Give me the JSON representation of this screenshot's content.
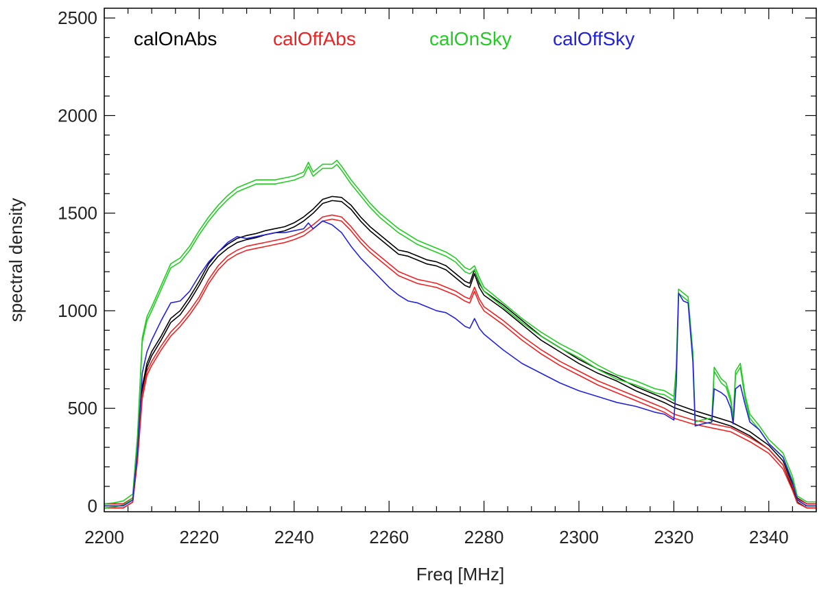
{
  "chart_data": {
    "type": "line",
    "xlabel": "Freq [MHz]",
    "ylabel": "spectral density",
    "xlim": [
      2200,
      2350
    ],
    "ylim": [
      -30,
      2550
    ],
    "x_ticks": [
      2200,
      2220,
      2240,
      2260,
      2280,
      2300,
      2320,
      2340
    ],
    "y_ticks": [
      0,
      500,
      1000,
      1500,
      2000,
      2500
    ],
    "x_minor_step": 5,
    "y_minor_step": 100,
    "grid": false,
    "legend_position": "top-left, horizontal",
    "series": [
      {
        "name": "calOnAbs",
        "color": "#000000",
        "line_style": "double-trace",
        "points": [
          [
            2200,
            0
          ],
          [
            2204,
            0
          ],
          [
            2206,
            30
          ],
          [
            2207,
            250
          ],
          [
            2208,
            600
          ],
          [
            2209,
            720
          ],
          [
            2210,
            780
          ],
          [
            2212,
            860
          ],
          [
            2214,
            950
          ],
          [
            2216,
            990
          ],
          [
            2218,
            1060
          ],
          [
            2220,
            1140
          ],
          [
            2222,
            1230
          ],
          [
            2224,
            1290
          ],
          [
            2226,
            1330
          ],
          [
            2228,
            1360
          ],
          [
            2230,
            1375
          ],
          [
            2232,
            1385
          ],
          [
            2234,
            1400
          ],
          [
            2236,
            1410
          ],
          [
            2238,
            1420
          ],
          [
            2240,
            1440
          ],
          [
            2242,
            1470
          ],
          [
            2244,
            1510
          ],
          [
            2246,
            1560
          ],
          [
            2248,
            1575
          ],
          [
            2250,
            1570
          ],
          [
            2252,
            1530
          ],
          [
            2254,
            1470
          ],
          [
            2256,
            1420
          ],
          [
            2258,
            1380
          ],
          [
            2260,
            1340
          ],
          [
            2262,
            1300
          ],
          [
            2264,
            1290
          ],
          [
            2266,
            1270
          ],
          [
            2268,
            1250
          ],
          [
            2270,
            1240
          ],
          [
            2272,
            1220
          ],
          [
            2274,
            1180
          ],
          [
            2276,
            1140
          ],
          [
            2277,
            1130
          ],
          [
            2278,
            1200
          ],
          [
            2279,
            1130
          ],
          [
            2280,
            1090
          ],
          [
            2284,
            1020
          ],
          [
            2288,
            940
          ],
          [
            2292,
            860
          ],
          [
            2296,
            800
          ],
          [
            2300,
            740
          ],
          [
            2304,
            690
          ],
          [
            2308,
            650
          ],
          [
            2312,
            600
          ],
          [
            2316,
            560
          ],
          [
            2318,
            540
          ],
          [
            2320,
            515
          ],
          [
            2324,
            480
          ],
          [
            2328,
            450
          ],
          [
            2332,
            420
          ],
          [
            2336,
            370
          ],
          [
            2340,
            300
          ],
          [
            2343,
            220
          ],
          [
            2345,
            100
          ],
          [
            2346,
            30
          ],
          [
            2348,
            0
          ],
          [
            2350,
            0
          ]
        ]
      },
      {
        "name": "calOffAbs",
        "color": "#ee2222",
        "line_style": "double-trace",
        "points": [
          [
            2200,
            0
          ],
          [
            2204,
            0
          ],
          [
            2206,
            30
          ],
          [
            2207,
            240
          ],
          [
            2208,
            560
          ],
          [
            2209,
            680
          ],
          [
            2210,
            730
          ],
          [
            2212,
            810
          ],
          [
            2214,
            880
          ],
          [
            2216,
            930
          ],
          [
            2218,
            990
          ],
          [
            2220,
            1060
          ],
          [
            2222,
            1150
          ],
          [
            2224,
            1220
          ],
          [
            2226,
            1270
          ],
          [
            2228,
            1300
          ],
          [
            2230,
            1320
          ],
          [
            2232,
            1330
          ],
          [
            2234,
            1340
          ],
          [
            2236,
            1350
          ],
          [
            2238,
            1360
          ],
          [
            2240,
            1375
          ],
          [
            2242,
            1395
          ],
          [
            2244,
            1430
          ],
          [
            2246,
            1470
          ],
          [
            2248,
            1480
          ],
          [
            2250,
            1470
          ],
          [
            2252,
            1420
          ],
          [
            2254,
            1360
          ],
          [
            2256,
            1310
          ],
          [
            2258,
            1270
          ],
          [
            2260,
            1230
          ],
          [
            2262,
            1190
          ],
          [
            2264,
            1170
          ],
          [
            2266,
            1150
          ],
          [
            2268,
            1140
          ],
          [
            2270,
            1130
          ],
          [
            2272,
            1110
          ],
          [
            2274,
            1090
          ],
          [
            2276,
            1060
          ],
          [
            2277,
            1050
          ],
          [
            2278,
            1110
          ],
          [
            2279,
            1050
          ],
          [
            2280,
            1010
          ],
          [
            2284,
            940
          ],
          [
            2288,
            860
          ],
          [
            2292,
            790
          ],
          [
            2296,
            730
          ],
          [
            2300,
            680
          ],
          [
            2304,
            630
          ],
          [
            2308,
            590
          ],
          [
            2312,
            550
          ],
          [
            2316,
            510
          ],
          [
            2318,
            490
          ],
          [
            2320,
            460
          ],
          [
            2324,
            430
          ],
          [
            2328,
            410
          ],
          [
            2332,
            390
          ],
          [
            2336,
            340
          ],
          [
            2340,
            280
          ],
          [
            2343,
            200
          ],
          [
            2345,
            90
          ],
          [
            2346,
            25
          ],
          [
            2348,
            0
          ],
          [
            2350,
            0
          ]
        ]
      },
      {
        "name": "calOnSky",
        "color": "#22cc22",
        "line_style": "double-trace",
        "points": [
          [
            2200,
            0
          ],
          [
            2202,
            5
          ],
          [
            2204,
            15
          ],
          [
            2206,
            50
          ],
          [
            2207,
            350
          ],
          [
            2208,
            850
          ],
          [
            2209,
            960
          ],
          [
            2210,
            1010
          ],
          [
            2212,
            1120
          ],
          [
            2214,
            1230
          ],
          [
            2216,
            1260
          ],
          [
            2218,
            1320
          ],
          [
            2220,
            1400
          ],
          [
            2222,
            1470
          ],
          [
            2224,
            1530
          ],
          [
            2226,
            1580
          ],
          [
            2228,
            1620
          ],
          [
            2230,
            1640
          ],
          [
            2232,
            1660
          ],
          [
            2234,
            1660
          ],
          [
            2236,
            1660
          ],
          [
            2238,
            1670
          ],
          [
            2240,
            1680
          ],
          [
            2242,
            1700
          ],
          [
            2243,
            1750
          ],
          [
            2244,
            1700
          ],
          [
            2246,
            1740
          ],
          [
            2248,
            1740
          ],
          [
            2249,
            1760
          ],
          [
            2250,
            1730
          ],
          [
            2252,
            1660
          ],
          [
            2254,
            1600
          ],
          [
            2256,
            1540
          ],
          [
            2258,
            1490
          ],
          [
            2260,
            1450
          ],
          [
            2262,
            1410
          ],
          [
            2264,
            1380
          ],
          [
            2266,
            1350
          ],
          [
            2268,
            1330
          ],
          [
            2270,
            1310
          ],
          [
            2272,
            1290
          ],
          [
            2274,
            1260
          ],
          [
            2276,
            1210
          ],
          [
            2277,
            1200
          ],
          [
            2278,
            1220
          ],
          [
            2279,
            1160
          ],
          [
            2280,
            1110
          ],
          [
            2284,
            1030
          ],
          [
            2288,
            950
          ],
          [
            2292,
            880
          ],
          [
            2296,
            820
          ],
          [
            2300,
            770
          ],
          [
            2304,
            710
          ],
          [
            2308,
            660
          ],
          [
            2312,
            630
          ],
          [
            2316,
            590
          ],
          [
            2318,
            580
          ],
          [
            2320,
            550
          ],
          [
            2320.5,
            700
          ],
          [
            2321,
            1100
          ],
          [
            2322,
            1080
          ],
          [
            2323,
            1060
          ],
          [
            2324,
            780
          ],
          [
            2324.5,
            420
          ],
          [
            2326,
            430
          ],
          [
            2328,
            440
          ],
          [
            2328.5,
            700
          ],
          [
            2330,
            640
          ],
          [
            2331,
            620
          ],
          [
            2332,
            540
          ],
          [
            2332.5,
            440
          ],
          [
            2333,
            680
          ],
          [
            2334,
            720
          ],
          [
            2335,
            560
          ],
          [
            2336,
            460
          ],
          [
            2338,
            400
          ],
          [
            2340,
            330
          ],
          [
            2343,
            260
          ],
          [
            2345,
            140
          ],
          [
            2346,
            40
          ],
          [
            2348,
            10
          ],
          [
            2350,
            10
          ]
        ]
      },
      {
        "name": "calOffSky",
        "color": "#2222dd",
        "line_style": "single",
        "points": [
          [
            2200,
            0
          ],
          [
            2204,
            0
          ],
          [
            2206,
            30
          ],
          [
            2207,
            280
          ],
          [
            2208,
            680
          ],
          [
            2209,
            790
          ],
          [
            2210,
            850
          ],
          [
            2212,
            950
          ],
          [
            2214,
            1040
          ],
          [
            2216,
            1050
          ],
          [
            2218,
            1100
          ],
          [
            2220,
            1180
          ],
          [
            2222,
            1250
          ],
          [
            2224,
            1300
          ],
          [
            2226,
            1350
          ],
          [
            2228,
            1380
          ],
          [
            2230,
            1370
          ],
          [
            2232,
            1380
          ],
          [
            2234,
            1390
          ],
          [
            2236,
            1400
          ],
          [
            2238,
            1400
          ],
          [
            2240,
            1410
          ],
          [
            2242,
            1420
          ],
          [
            2243,
            1450
          ],
          [
            2244,
            1420
          ],
          [
            2246,
            1460
          ],
          [
            2248,
            1440
          ],
          [
            2250,
            1400
          ],
          [
            2252,
            1330
          ],
          [
            2254,
            1270
          ],
          [
            2256,
            1220
          ],
          [
            2258,
            1170
          ],
          [
            2260,
            1120
          ],
          [
            2262,
            1080
          ],
          [
            2264,
            1050
          ],
          [
            2266,
            1040
          ],
          [
            2268,
            1020
          ],
          [
            2270,
            1000
          ],
          [
            2272,
            990
          ],
          [
            2274,
            960
          ],
          [
            2276,
            920
          ],
          [
            2277,
            910
          ],
          [
            2278,
            960
          ],
          [
            2279,
            910
          ],
          [
            2280,
            880
          ],
          [
            2284,
            800
          ],
          [
            2288,
            730
          ],
          [
            2292,
            680
          ],
          [
            2296,
            630
          ],
          [
            2300,
            590
          ],
          [
            2304,
            560
          ],
          [
            2308,
            530
          ],
          [
            2312,
            510
          ],
          [
            2316,
            480
          ],
          [
            2318,
            470
          ],
          [
            2320,
            440
          ],
          [
            2320.5,
            620
          ],
          [
            2321,
            1090
          ],
          [
            2322,
            1050
          ],
          [
            2323,
            1040
          ],
          [
            2324,
            740
          ],
          [
            2324.5,
            410
          ],
          [
            2326,
            420
          ],
          [
            2328,
            430
          ],
          [
            2328.5,
            600
          ],
          [
            2330,
            580
          ],
          [
            2331,
            560
          ],
          [
            2332,
            500
          ],
          [
            2332.5,
            420
          ],
          [
            2333,
            600
          ],
          [
            2334,
            620
          ],
          [
            2335,
            520
          ],
          [
            2336,
            430
          ],
          [
            2338,
            390
          ],
          [
            2340,
            320
          ],
          [
            2343,
            250
          ],
          [
            2345,
            120
          ],
          [
            2346,
            30
          ],
          [
            2348,
            0
          ],
          [
            2350,
            0
          ]
        ]
      }
    ]
  }
}
